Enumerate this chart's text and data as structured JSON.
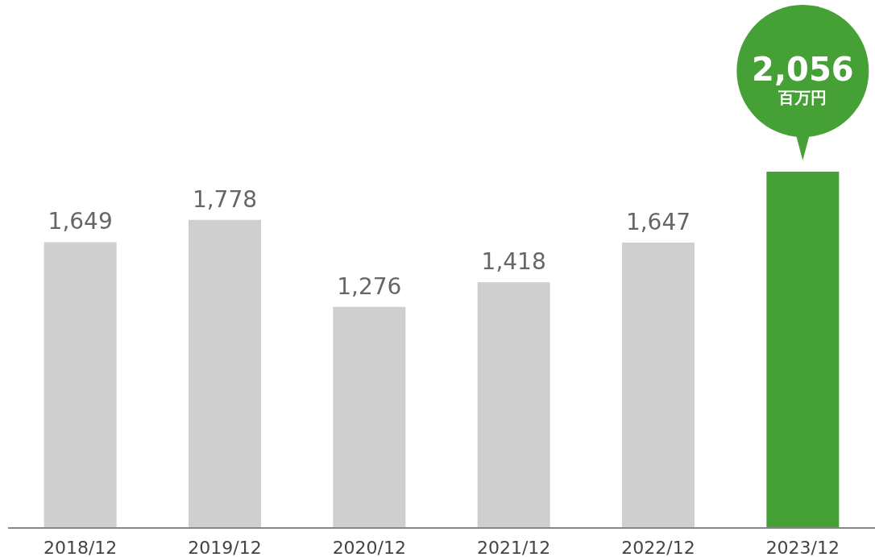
{
  "chart_data": {
    "type": "bar",
    "categories": [
      "2018/12",
      "2019/12",
      "2020/12",
      "2021/12",
      "2022/12",
      "2023/12"
    ],
    "values": [
      1649,
      1778,
      1276,
      1418,
      1647,
      2056
    ],
    "colors": [
      "#d0cfd0",
      "#d0cfd0",
      "#d0cfd0",
      "#d0cfd0",
      "#d0cfd0",
      "#45a035"
    ],
    "value_labels": [
      "1,649",
      "1,778",
      "1,276",
      "1,418",
      "1,647",
      "2,056"
    ],
    "annotations": [
      "百万円"
    ]
  }
}
